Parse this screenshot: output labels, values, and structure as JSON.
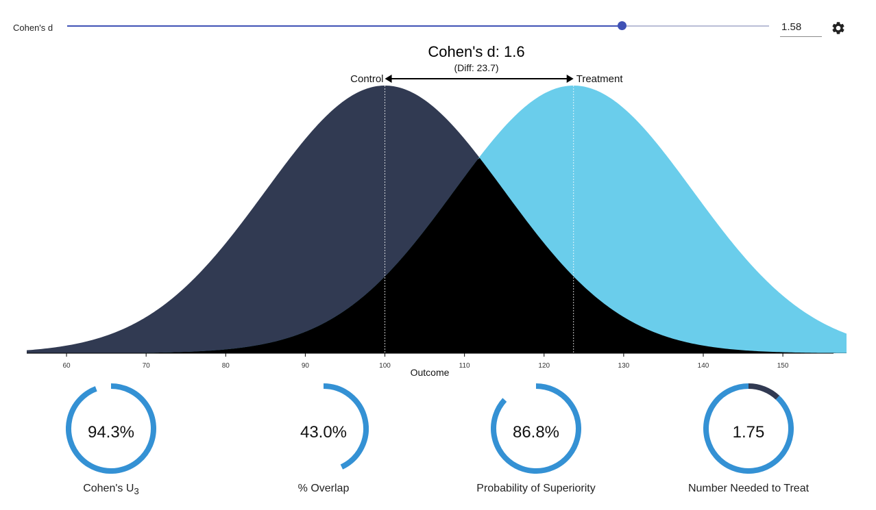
{
  "slider": {
    "label": "Cohen's d",
    "value": 1.58,
    "min": 0,
    "max": 2,
    "value_text": "1.58",
    "track_color": "#b9bdd6",
    "accent": "#3f51b5"
  },
  "settings_icon": "gear-icon",
  "chart_data": {
    "type": "area",
    "title": "Cohen's d: 1.6",
    "subtitle": "(Diff: 23.7)",
    "xlabel": "Outcome",
    "ylabel": "",
    "xlim": [
      55,
      158
    ],
    "x_ticks": [
      60,
      70,
      80,
      90,
      100,
      110,
      120,
      130,
      140,
      150
    ],
    "series": [
      {
        "name": "Control",
        "mean": 100,
        "sd": 15,
        "color": "#313a52"
      },
      {
        "name": "Treatment",
        "mean": 123.7,
        "sd": 15,
        "color": "#6acdeb"
      }
    ],
    "overlap_color": "#000000",
    "mean_lines": "dashed",
    "grid": false
  },
  "gauges": [
    {
      "value": "94.3%",
      "label_main": "Cohen's U",
      "label_sub": "3",
      "fraction": 0.943,
      "color": "#3491d4",
      "track": "#ffffff"
    },
    {
      "value": "43.0%",
      "label_main": "% Overlap",
      "label_sub": "",
      "fraction": 0.43,
      "color": "#3491d4",
      "track": "#ffffff"
    },
    {
      "value": "86.8%",
      "label_main": "Probability of Superiority",
      "label_sub": "",
      "fraction": 0.868,
      "color": "#3491d4",
      "track": "#ffffff"
    },
    {
      "value": "1.75",
      "label_main": "Number Needed to Treat",
      "label_sub": "",
      "fraction": 0.88,
      "color": "#3491d4",
      "track": "#313a52"
    }
  ]
}
